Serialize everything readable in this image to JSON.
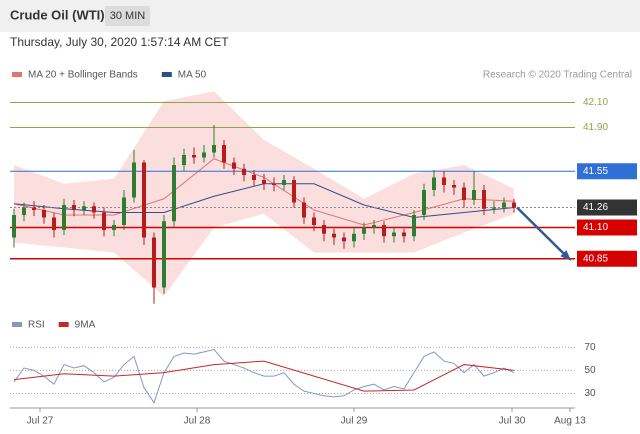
{
  "header": {
    "title": "Crude Oil (WTI)",
    "timeframe": "30 MIN",
    "timestamp": "Thursday, July 30, 2020 1:57:14 AM CET",
    "credit": "Research © 2020 Trading Central"
  },
  "chart_data": [
    {
      "type": "candlestick",
      "x": [
        0,
        1,
        2,
        3,
        4,
        5,
        6,
        7,
        8,
        9,
        10,
        11,
        12,
        13,
        14,
        15,
        16,
        17,
        18,
        19,
        20,
        21,
        22,
        23,
        24,
        25,
        26,
        27,
        28,
        29,
        30,
        31,
        32,
        33,
        34,
        35,
        36,
        37,
        38,
        39,
        40,
        41,
        42,
        43,
        44,
        45,
        46,
        47,
        48,
        49,
        50
      ],
      "open": [
        41.02,
        41.2,
        41.26,
        41.24,
        41.18,
        41.08,
        41.28,
        41.24,
        41.27,
        41.22,
        41.08,
        41.12,
        41.34,
        41.62,
        41.02,
        40.62,
        41.15,
        41.6,
        41.68,
        41.66,
        41.7,
        41.76,
        41.62,
        41.57,
        41.52,
        41.48,
        41.45,
        41.44,
        41.48,
        41.3,
        41.18,
        41.12,
        41.05,
        41.02,
        40.99,
        41.05,
        41.1,
        41.12,
        41.03,
        41.06,
        41.03,
        41.2,
        41.4,
        41.5,
        41.44,
        41.42,
        41.32,
        41.4,
        41.25,
        41.26,
        41.3
      ],
      "high": [
        41.25,
        41.3,
        41.31,
        41.28,
        41.22,
        41.33,
        41.32,
        41.31,
        41.3,
        41.26,
        41.16,
        41.4,
        41.72,
        41.64,
        41.06,
        41.2,
        41.66,
        41.73,
        41.74,
        41.76,
        41.92,
        41.8,
        41.66,
        41.61,
        41.56,
        41.53,
        41.5,
        41.52,
        41.51,
        41.34,
        41.22,
        41.16,
        41.09,
        41.06,
        41.1,
        41.14,
        41.16,
        41.15,
        41.1,
        41.09,
        41.24,
        41.45,
        41.56,
        41.55,
        41.48,
        41.46,
        41.55,
        41.44,
        41.31,
        41.34,
        41.33
      ],
      "low": [
        40.94,
        41.15,
        41.19,
        41.13,
        41.02,
        41.04,
        41.19,
        41.2,
        41.17,
        41.03,
        41.03,
        41.08,
        41.3,
        40.96,
        40.49,
        40.57,
        41.1,
        41.55,
        41.61,
        41.62,
        41.66,
        41.57,
        41.52,
        41.47,
        41.43,
        41.4,
        41.39,
        41.4,
        41.26,
        41.13,
        41.07,
        40.99,
        40.96,
        40.93,
        40.94,
        41.0,
        41.05,
        40.98,
        40.98,
        40.98,
        40.99,
        41.16,
        41.35,
        41.38,
        41.36,
        41.26,
        41.28,
        41.2,
        41.21,
        41.22,
        41.22
      ],
      "close": [
        41.2,
        41.26,
        41.24,
        41.18,
        41.08,
        41.28,
        41.24,
        41.27,
        41.22,
        41.08,
        41.12,
        41.34,
        41.62,
        41.02,
        40.62,
        41.15,
        41.6,
        41.68,
        41.66,
        41.7,
        41.76,
        41.62,
        41.57,
        41.52,
        41.48,
        41.45,
        41.44,
        41.48,
        41.3,
        41.18,
        41.12,
        41.05,
        41.02,
        40.99,
        41.05,
        41.1,
        41.12,
        41.03,
        41.06,
        41.03,
        41.2,
        41.4,
        41.5,
        41.44,
        41.42,
        41.32,
        41.4,
        41.25,
        41.26,
        41.3,
        41.26
      ],
      "up_color": "#2e7d32",
      "down_color": "#b71c1c",
      "series": [
        {
          "name": "MA 20 + Bollinger Bands",
          "color": "#e57373",
          "band_color": "#f8c8c8",
          "x": [
            0,
            5,
            10,
            15,
            20,
            25,
            30,
            35,
            40,
            45,
            50
          ],
          "values": [
            41.29,
            41.2,
            41.2,
            41.33,
            41.65,
            41.5,
            41.24,
            41.12,
            41.22,
            41.33,
            41.31
          ],
          "upper": [
            41.6,
            41.45,
            41.49,
            42.11,
            42.19,
            41.8,
            41.57,
            41.33,
            41.53,
            41.6,
            41.41
          ],
          "lower": [
            40.98,
            40.94,
            40.9,
            40.55,
            41.1,
            41.21,
            40.9,
            40.9,
            40.9,
            41.06,
            41.21
          ]
        },
        {
          "name": "MA 50",
          "color": "#2c4f8a",
          "x": [
            0,
            5,
            10,
            15,
            20,
            25,
            30,
            35,
            40,
            45,
            50
          ],
          "values": [
            41.29,
            41.25,
            41.22,
            41.22,
            41.35,
            41.45,
            41.45,
            41.28,
            41.18,
            41.22,
            41.26
          ]
        }
      ],
      "levels": [
        {
          "value": 42.1,
          "label": "42.10",
          "color": "#8fa548"
        },
        {
          "value": 41.9,
          "label": "41.90",
          "color": "#8fa548"
        },
        {
          "value": 41.55,
          "label": "41.55",
          "color": "#2f6fd6"
        },
        {
          "value": 41.26,
          "label": "41.26",
          "color": "#333333"
        },
        {
          "value": 41.1,
          "label": "41.10",
          "color": "#d50000"
        },
        {
          "value": 40.85,
          "label": "40.85",
          "color": "#d50000"
        }
      ],
      "arrow_color": "#2f5a9a",
      "xlim": [
        -0.4,
        56.1
      ],
      "ylim": [
        40.48,
        42.24
      ]
    },
    {
      "type": "line",
      "series": [
        {
          "name": "RSI",
          "color": "#8797c4",
          "x": [
            0,
            1,
            2,
            3,
            4,
            5,
            6,
            7,
            8,
            9,
            10,
            11,
            12,
            13,
            14,
            15,
            16,
            17,
            18,
            19,
            20,
            21,
            22,
            23,
            24,
            25,
            26,
            27,
            28,
            29,
            30,
            31,
            32,
            33,
            34,
            35,
            36,
            37,
            38,
            39,
            40,
            41,
            42,
            43,
            44,
            45,
            46,
            47,
            48,
            49,
            50
          ],
          "values": [
            40,
            52,
            50,
            45,
            38,
            55,
            52,
            54,
            48,
            40,
            44,
            55,
            62,
            35,
            22,
            48,
            62,
            65,
            64,
            66,
            68,
            58,
            55,
            52,
            48,
            45,
            45,
            48,
            38,
            32,
            30,
            28,
            27,
            28,
            33,
            36,
            38,
            33,
            36,
            34,
            48,
            62,
            66,
            58,
            56,
            48,
            55,
            45,
            48,
            52,
            48
          ]
        },
        {
          "name": "9MA",
          "color": "#c62828",
          "x": [
            0,
            5,
            10,
            15,
            20,
            25,
            30,
            35,
            40,
            45,
            50
          ],
          "values": [
            42,
            47,
            45,
            48,
            55,
            58,
            45,
            32,
            33,
            55,
            50
          ]
        }
      ],
      "ylim": [
        20,
        78
      ],
      "yticks": [
        30,
        50,
        70
      ],
      "xlim": [
        -0.4,
        56.1
      ],
      "xticks": [
        {
          "value": 2.6,
          "label": "Jul 27"
        },
        {
          "value": 18.3,
          "label": "Jul 28"
        },
        {
          "value": 34.0,
          "label": "Jul 29"
        },
        {
          "value": 49.8,
          "label": "Jul 30"
        },
        {
          "value": 55.6,
          "label": "Aug 13"
        }
      ]
    }
  ]
}
